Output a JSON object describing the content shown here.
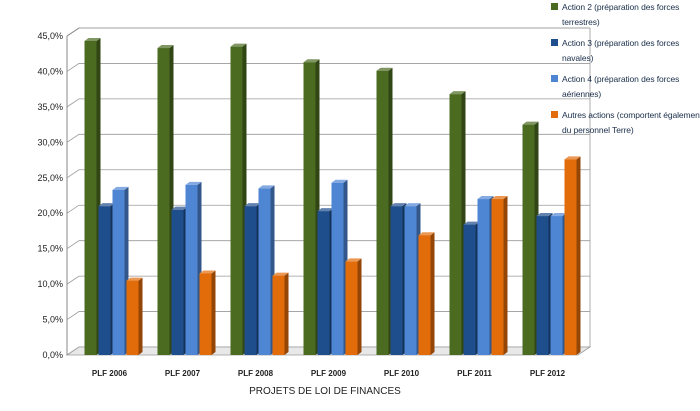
{
  "chart_data": {
    "type": "bar",
    "title": "",
    "xlabel": "PROJETS DE LOI DE FINANCES",
    "ylabel": "",
    "categories": [
      "PLF 2006",
      "PLF 2007",
      "PLF 2008",
      "PLF 2009",
      "PLF 2010",
      "PLF 2011",
      "PLF 2012"
    ],
    "y_ticks": [
      "0,0%",
      "5,0%",
      "10,0%",
      "15,0%",
      "20,0%",
      "25,0%",
      "30,0%",
      "35,0%",
      "40,0%",
      "45,0%"
    ],
    "ylim": [
      0,
      45
    ],
    "grid": true,
    "legend_position": "top-right",
    "series": [
      {
        "name": "Action 2 (préparation des forces terrestres)",
        "color": "#4a6b20",
        "values": [
          44.3,
          43.3,
          43.5,
          41.3,
          40.1,
          36.8,
          32.5
        ]
      },
      {
        "name": "Action 3 (préparation des forces navales)",
        "color": "#1f4e8c",
        "values": [
          21.0,
          20.5,
          21.0,
          20.3,
          21.0,
          18.4,
          19.6
        ]
      },
      {
        "name": "Action 4 (préparation des forces aériennes)",
        "color": "#4f86d4",
        "values": [
          23.3,
          24.0,
          23.5,
          24.3,
          21.0,
          22.0,
          19.6
        ]
      },
      {
        "name": "Autres actions (comportent également du personnel Terre)",
        "color": "#e36c0a",
        "values": [
          10.5,
          11.5,
          11.2,
          13.2,
          16.9,
          22.0,
          27.6
        ]
      }
    ]
  }
}
